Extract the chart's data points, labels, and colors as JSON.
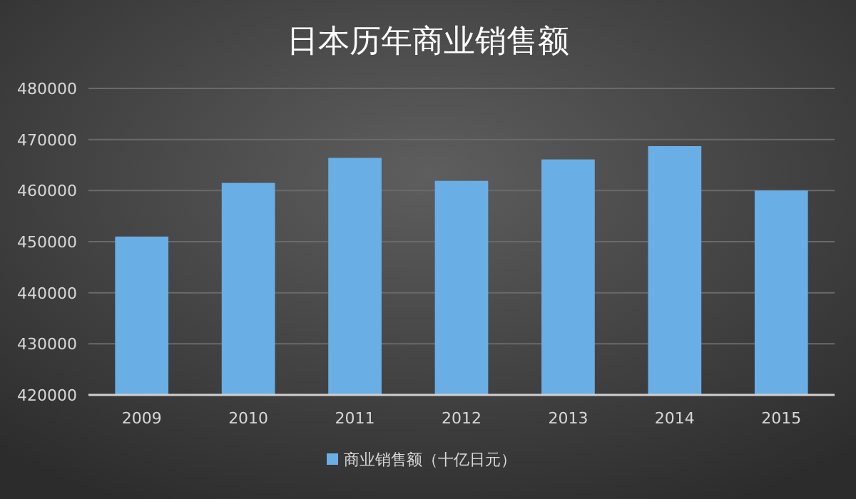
{
  "chart_data": {
    "type": "bar",
    "title": "日本历年商业销售额",
    "categories": [
      "2009",
      "2010",
      "2011",
      "2012",
      "2013",
      "2014",
      "2015"
    ],
    "series": [
      {
        "name": "商业销售额（十亿日元）",
        "color": "#6aaee6",
        "values": [
          451000,
          461500,
          466400,
          461900,
          466100,
          468700,
          460000
        ]
      }
    ],
    "ylim": [
      420000,
      480000
    ],
    "yticks": [
      420000,
      430000,
      440000,
      450000,
      460000,
      470000,
      480000
    ],
    "grid": "y",
    "legend": "bottom"
  }
}
